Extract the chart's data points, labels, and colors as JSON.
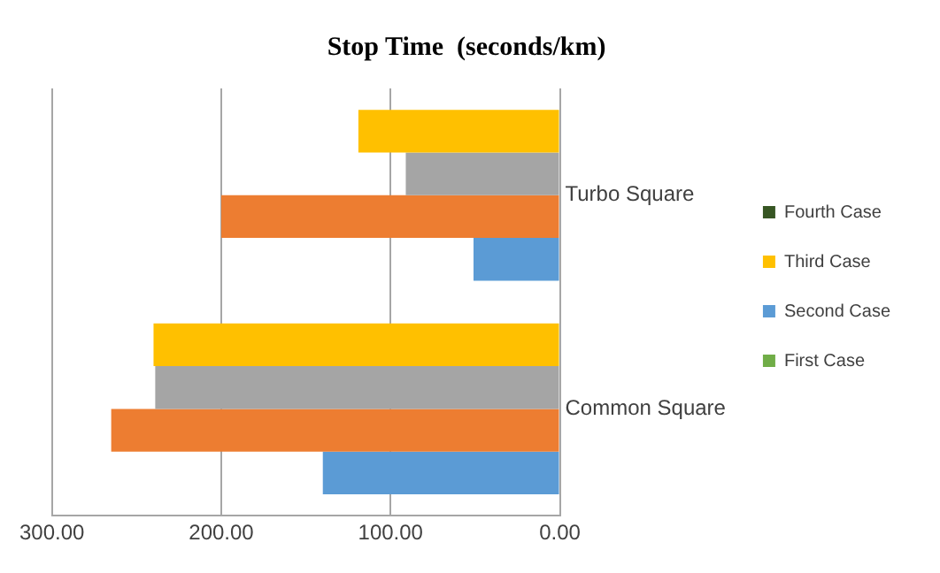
{
  "chart_data": {
    "type": "bar",
    "orientation": "horizontal",
    "title": "Stop Time  (seconds/km)",
    "categories": [
      "Turbo Square",
      "Common Square"
    ],
    "series": [
      {
        "name": "Fourth Case",
        "color": "#375623",
        "values": [
          null,
          null
        ]
      },
      {
        "name": "Third Case",
        "color": "#ffc000",
        "values": [
          119,
          240
        ]
      },
      {
        "color": "#a5a5a5",
        "values": [
          91,
          239
        ]
      },
      {
        "color": "#ed7d31",
        "values": [
          200,
          265
        ]
      },
      {
        "name": "Second Case",
        "color": "#5b9bd5",
        "values": [
          51,
          140
        ]
      },
      {
        "name": "First Case",
        "color": "#70ad47",
        "values": [
          null,
          null
        ]
      }
    ],
    "xlim": [
      300,
      0
    ],
    "xticks": [
      {
        "value": 300,
        "label": "300.00"
      },
      {
        "value": 200,
        "label": "200.00"
      },
      {
        "value": 100,
        "label": "100.00"
      },
      {
        "value": 0,
        "label": "0.00"
      }
    ],
    "grid": "x",
    "legend": "right"
  }
}
